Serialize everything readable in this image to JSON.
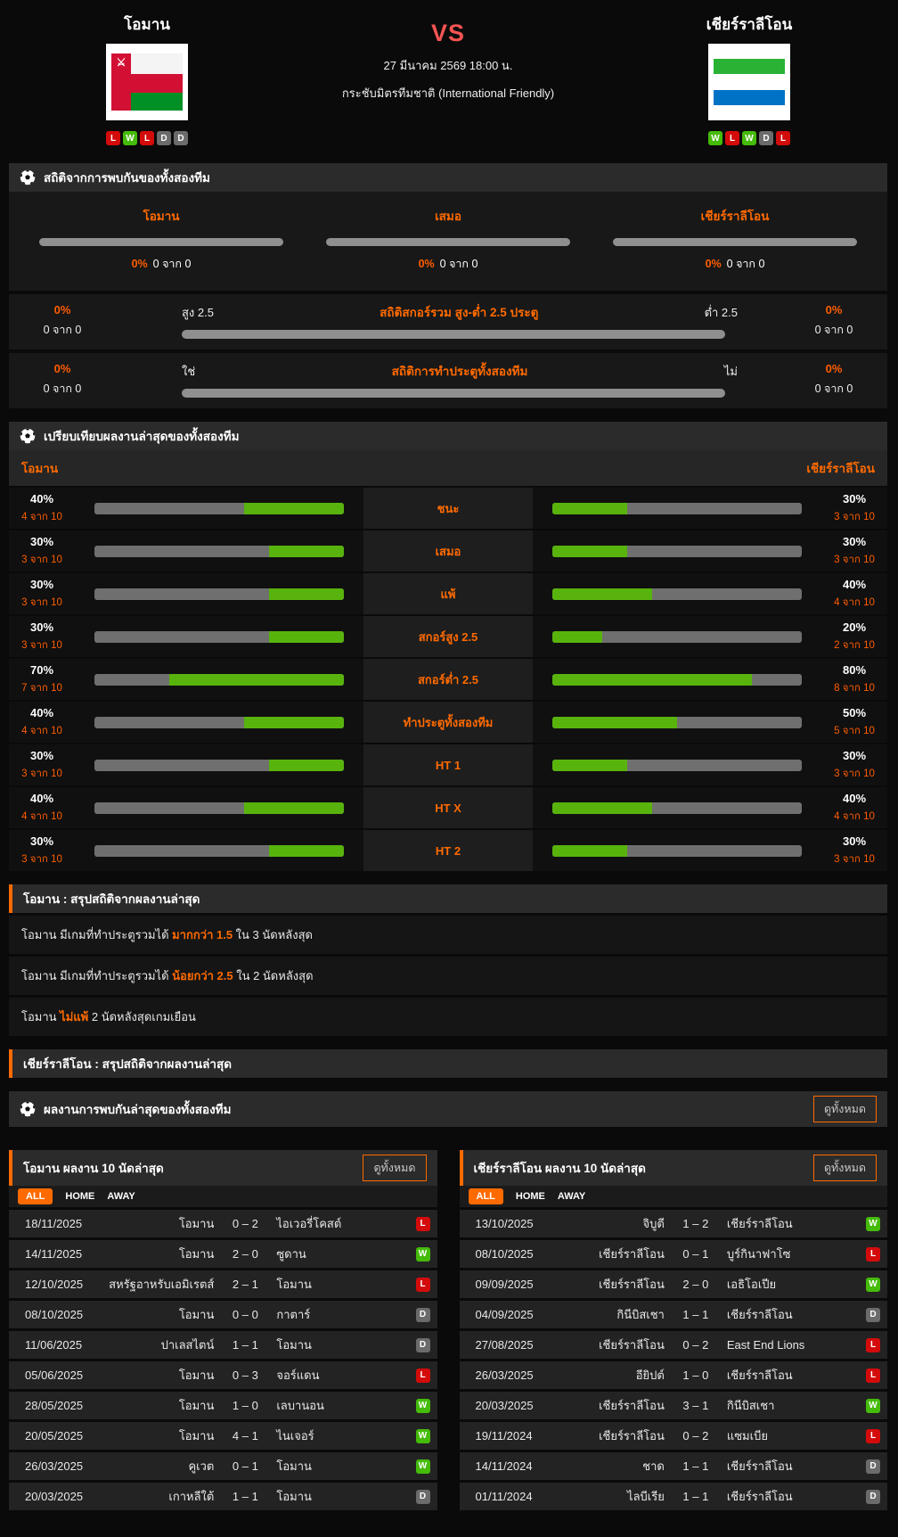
{
  "accent": "#ff6a00",
  "colors": {
    "win": "#45bb0a",
    "lose": "#d40b0b",
    "draw": "#6b6b6b",
    "bar_green": "#58b30d",
    "bar_gray": "#6f6f6f",
    "vs_red": "#f65353"
  },
  "header": {
    "home": {
      "name": "โอมาน",
      "form": [
        "L",
        "W",
        "L",
        "D",
        "D"
      ]
    },
    "away": {
      "name": "เชียร์ราลีโอน",
      "form": [
        "W",
        "L",
        "W",
        "D",
        "L"
      ]
    },
    "vs": "VS",
    "datetime": "27 มีนาคม 2569 18:00 น.",
    "competition": "กระชับมิตรทีมชาติ (International Friendly)"
  },
  "h2h": {
    "title": "สถิติจากการพบกันของทั้งสองทีม",
    "cols": [
      {
        "label": "โอมาน",
        "percent": "0%",
        "count": "0 จาก 0"
      },
      {
        "label": "เสมอ",
        "percent": "0%",
        "count": "0 จาก 0"
      },
      {
        "label": "เชียร์ราลีโอน",
        "percent": "0%",
        "count": "0 จาก 0"
      }
    ],
    "rows": [
      {
        "title": "สถิติสกอร์รวม สูง-ต่ำ 2.5 ประตู",
        "left_label": "สูง 2.5",
        "right_label": "ต่ำ 2.5",
        "left_percent": "0%",
        "left_count": "0 จาก 0",
        "right_percent": "0%",
        "right_count": "0 จาก 0"
      },
      {
        "title": "สถิติการทำประตูทั้งสองทีม",
        "left_label": "ใช่",
        "right_label": "ไม่",
        "left_percent": "0%",
        "left_count": "0 จาก 0",
        "right_percent": "0%",
        "right_count": "0 จาก 0"
      }
    ]
  },
  "compare": {
    "title": "เปรียบเทียบผลงานล่าสุดของทั้งสองทีม",
    "home_label": "โอมาน",
    "away_label": "เชียร์ราลีโอน",
    "rows": [
      {
        "label": "ชนะ",
        "home_percent": 40,
        "home_count": "4 จาก 10",
        "away_percent": 30,
        "away_count": "3 จาก 10"
      },
      {
        "label": "เสมอ",
        "home_percent": 30,
        "home_count": "3 จาก 10",
        "away_percent": 30,
        "away_count": "3 จาก 10"
      },
      {
        "label": "แพ้",
        "home_percent": 30,
        "home_count": "3 จาก 10",
        "away_percent": 40,
        "away_count": "4 จาก 10"
      },
      {
        "label": "สกอร์สูง 2.5",
        "home_percent": 30,
        "home_count": "3 จาก 10",
        "away_percent": 20,
        "away_count": "2 จาก 10"
      },
      {
        "label": "สกอร์ต่ำ 2.5",
        "home_percent": 70,
        "home_count": "7 จาก 10",
        "away_percent": 80,
        "away_count": "8 จาก 10"
      },
      {
        "label": "ทำประตูทั้งสองทีม",
        "home_percent": 40,
        "home_count": "4 จาก 10",
        "away_percent": 50,
        "away_count": "5 จาก 10"
      },
      {
        "label": "HT 1",
        "home_percent": 30,
        "home_count": "3 จาก 10",
        "away_percent": 30,
        "away_count": "3 จาก 10"
      },
      {
        "label": "HT X",
        "home_percent": 40,
        "home_count": "4 จาก 10",
        "away_percent": 40,
        "away_count": "4 จาก 10"
      },
      {
        "label": "HT 2",
        "home_percent": 30,
        "home_count": "3 จาก 10",
        "away_percent": 30,
        "away_count": "3 จาก 10"
      }
    ]
  },
  "home_summary": {
    "title": "โอมาน : สรุปสถิติจากผลงานล่าสุด",
    "lines": [
      {
        "pre": "โอมาน  มีเกมที่ทำประตูรวมได้ ",
        "highlight": "มากกว่า  1.5",
        "post": " ใน 3 นัดหลังสุด"
      },
      {
        "pre": "โอมาน  มีเกมที่ทำประตูรวมได้ ",
        "highlight": "น้อยกว่า  2.5",
        "post": " ใน 2 นัดหลังสุด"
      },
      {
        "pre": "โอมาน ",
        "highlight": "ไม่แพ้",
        "post": " 2 นัดหลังสุดเกมเยือน"
      }
    ]
  },
  "away_summary": {
    "title": "เชียร์ราลีโอน : สรุปสถิติจากผลงานล่าสุด"
  },
  "meetings": {
    "title": "ผลงานการพบกันล่าสุดของทั้งสองทีม",
    "view_all": "ดูทั้งหมด"
  },
  "tables": [
    {
      "title": "โอมาน ผลงาน 10 นัดล่าสุด",
      "view_all": "ดูทั้งหมด",
      "tabs": [
        "ALL",
        "HOME",
        "AWAY"
      ],
      "active_tab": "ALL",
      "rows": [
        {
          "date": "18/11/2025",
          "home": "โอมาน",
          "score": "0 – 2",
          "away": "ไอเวอรี่โคสต์",
          "result": "L"
        },
        {
          "date": "14/11/2025",
          "home": "โอมาน",
          "score": "2 – 0",
          "away": "ซูดาน",
          "result": "W"
        },
        {
          "date": "12/10/2025",
          "home": "สหรัฐอาหรับเอมิเรตส์",
          "score": "2 – 1",
          "away": "โอมาน",
          "result": "L"
        },
        {
          "date": "08/10/2025",
          "home": "โอมาน",
          "score": "0 – 0",
          "away": "กาตาร์",
          "result": "D"
        },
        {
          "date": "11/06/2025",
          "home": "ปาเลสไตน์",
          "score": "1 – 1",
          "away": "โอมาน",
          "result": "D"
        },
        {
          "date": "05/06/2025",
          "home": "โอมาน",
          "score": "0 – 3",
          "away": "จอร์แดน",
          "result": "L"
        },
        {
          "date": "28/05/2025",
          "home": "โอมาน",
          "score": "1 – 0",
          "away": "เลบานอน",
          "result": "W"
        },
        {
          "date": "20/05/2025",
          "home": "โอมาน",
          "score": "4 – 1",
          "away": "ไนเจอร์",
          "result": "W"
        },
        {
          "date": "26/03/2025",
          "home": "คูเวต",
          "score": "0 – 1",
          "away": "โอมาน",
          "result": "W"
        },
        {
          "date": "20/03/2025",
          "home": "เกาหลีใต้",
          "score": "1 – 1",
          "away": "โอมาน",
          "result": "D"
        }
      ]
    },
    {
      "title": "เชียร์ราลีโอน ผลงาน 10 นัดล่าสุด",
      "view_all": "ดูทั้งหมด",
      "tabs": [
        "ALL",
        "HOME",
        "AWAY"
      ],
      "active_tab": "ALL",
      "rows": [
        {
          "date": "13/10/2025",
          "home": "จิบูตี",
          "score": "1 – 2",
          "away": "เชียร์ราลีโอน",
          "result": "W"
        },
        {
          "date": "08/10/2025",
          "home": "เชียร์ราลีโอน",
          "score": "0 – 1",
          "away": "บูร์กินาฟาโซ",
          "result": "L"
        },
        {
          "date": "09/09/2025",
          "home": "เชียร์ราลีโอน",
          "score": "2 – 0",
          "away": "เอธิโอเปีย",
          "result": "W"
        },
        {
          "date": "04/09/2025",
          "home": "กินีบิสเชา",
          "score": "1 – 1",
          "away": "เชียร์ราลีโอน",
          "result": "D"
        },
        {
          "date": "27/08/2025",
          "home": "เชียร์ราลีโอน",
          "score": "0 – 2",
          "away": "East End Lions",
          "result": "L"
        },
        {
          "date": "26/03/2025",
          "home": "อียิปต์",
          "score": "1 – 0",
          "away": "เชียร์ราลีโอน",
          "result": "L"
        },
        {
          "date": "20/03/2025",
          "home": "เชียร์ราลีโอน",
          "score": "3 – 1",
          "away": "กินีบิสเชา",
          "result": "W"
        },
        {
          "date": "19/11/2024",
          "home": "เชียร์ราลีโอน",
          "score": "0 – 2",
          "away": "แซมเบีย",
          "result": "L"
        },
        {
          "date": "14/11/2024",
          "home": "ชาด",
          "score": "1 – 1",
          "away": "เชียร์ราลีโอน",
          "result": "D"
        },
        {
          "date": "01/11/2024",
          "home": "ไลบีเรีย",
          "score": "1 – 1",
          "away": "เชียร์ราลีโอน",
          "result": "D"
        }
      ]
    }
  ]
}
